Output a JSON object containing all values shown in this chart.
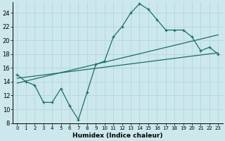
{
  "background_color": "#cce8ec",
  "grid_color": "#b8d8dc",
  "line_color": "#1a6e6a",
  "xlabel": "Humidex (Indice chaleur)",
  "xlim": [
    -0.5,
    23.5
  ],
  "ylim": [
    8,
    25.5
  ],
  "yticks": [
    8,
    10,
    12,
    14,
    16,
    18,
    20,
    22,
    24
  ],
  "xticks": [
    0,
    1,
    2,
    3,
    4,
    5,
    6,
    7,
    8,
    9,
    10,
    11,
    12,
    13,
    14,
    15,
    16,
    17,
    18,
    19,
    20,
    21,
    22,
    23
  ],
  "line1_x": [
    0,
    1,
    2,
    3,
    4,
    5,
    6,
    7,
    8,
    9,
    10,
    11,
    12,
    13,
    14,
    15,
    16,
    17,
    18,
    19,
    20,
    21,
    22,
    23
  ],
  "line1_y": [
    15,
    14,
    13.5,
    11,
    11,
    13,
    10.5,
    8.5,
    12.5,
    16.5,
    17,
    20.5,
    22,
    24,
    25.3,
    24.5,
    23,
    21.5,
    21.5,
    21.5,
    20.5,
    18.5,
    19,
    18
  ],
  "line2_x": [
    0,
    23
  ],
  "line2_y": [
    14.5,
    18.2
  ],
  "line3_x": [
    0,
    23
  ],
  "line3_y": [
    13.8,
    20.8
  ]
}
